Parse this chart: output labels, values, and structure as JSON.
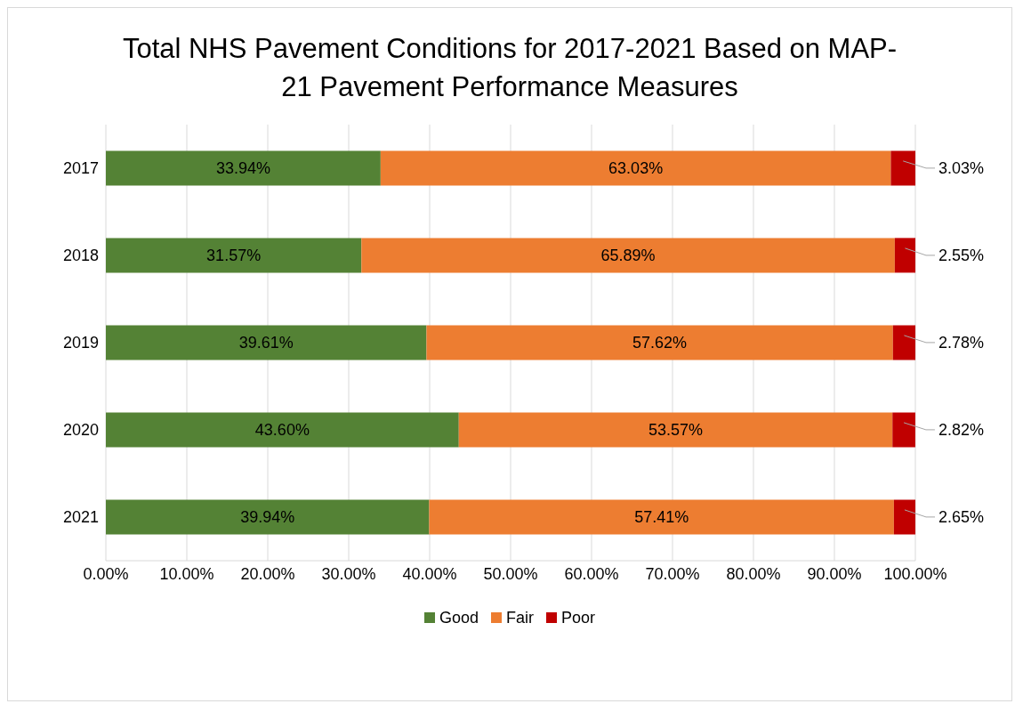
{
  "chart_data": {
    "type": "bar",
    "orientation": "horizontal",
    "stacked": true,
    "title": "Total NHS Pavement Conditions for 2017-2021 Based on MAP-21 Pavement Performance Measures",
    "categories": [
      "2017",
      "2018",
      "2019",
      "2020",
      "2021"
    ],
    "series": [
      {
        "name": "Good",
        "color": "#548235",
        "values": [
          33.94,
          31.57,
          39.61,
          43.6,
          39.94
        ],
        "value_labels": [
          "33.94%",
          "31.57%",
          "39.61%",
          "43.60%",
          "39.94%"
        ]
      },
      {
        "name": "Fair",
        "color": "#ed7d31",
        "values": [
          63.03,
          65.89,
          57.62,
          53.57,
          57.41
        ],
        "value_labels": [
          "63.03%",
          "65.89%",
          "57.62%",
          "53.57%",
          "57.41%"
        ]
      },
      {
        "name": "Poor",
        "color": "#c00000",
        "values": [
          3.03,
          2.55,
          2.78,
          2.82,
          2.65
        ],
        "value_labels": [
          "3.03%",
          "2.55%",
          "2.78%",
          "2.82%",
          "2.65%"
        ]
      }
    ],
    "xlim": [
      0,
      100
    ],
    "xticks": [
      {
        "value": 0,
        "label": "0.00%"
      },
      {
        "value": 10,
        "label": "10.00%"
      },
      {
        "value": 20,
        "label": "20.00%"
      },
      {
        "value": 30,
        "label": "30.00%"
      },
      {
        "value": 40,
        "label": "40.00%"
      },
      {
        "value": 50,
        "label": "50.00%"
      },
      {
        "value": 60,
        "label": "60.00%"
      },
      {
        "value": 70,
        "label": "70.00%"
      },
      {
        "value": 80,
        "label": "80.00%"
      },
      {
        "value": 90,
        "label": "90.00%"
      },
      {
        "value": 100,
        "label": "100.00%"
      }
    ],
    "grid": "x",
    "legend": "bottom"
  }
}
